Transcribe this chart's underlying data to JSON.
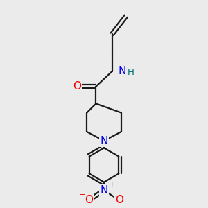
{
  "bg_color": "#ebebeb",
  "bond_color": "#1a1a1a",
  "bond_width": 1.6,
  "atom_colors": {
    "C": "#1a1a1a",
    "N": "#0000ee",
    "O": "#ee0000",
    "H": "#007070"
  },
  "font_size": 10,
  "fig_size": [
    3.0,
    3.0
  ],
  "dpi": 100,
  "xlim": [
    0,
    10
  ],
  "ylim": [
    0,
    10
  ]
}
